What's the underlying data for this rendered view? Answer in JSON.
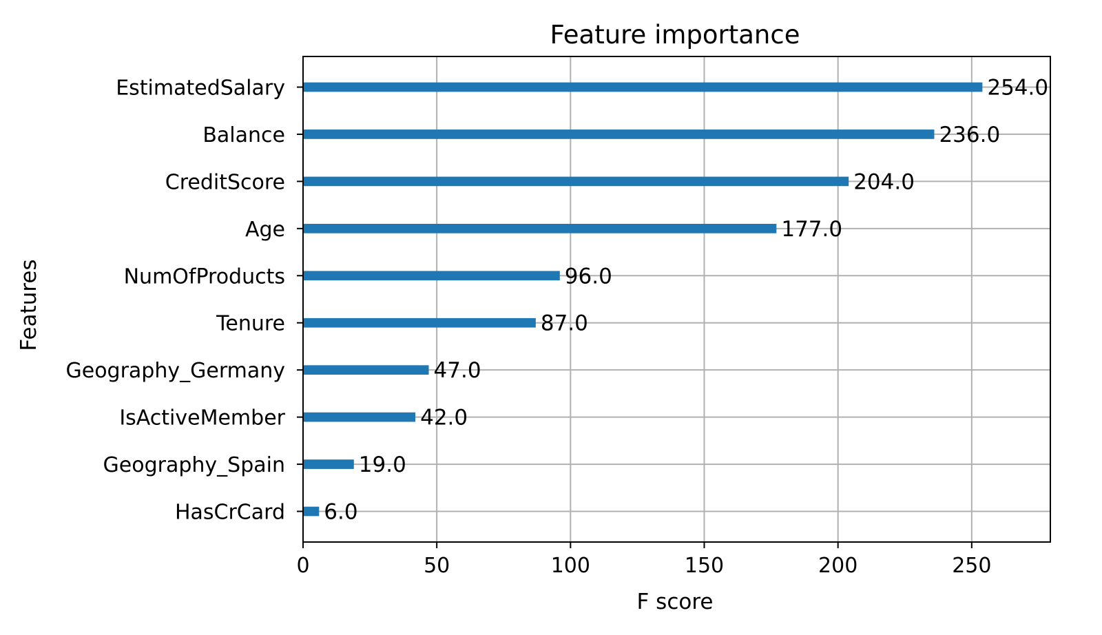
{
  "chart_data": {
    "type": "bar",
    "orientation": "horizontal",
    "title": "Feature importance",
    "xlabel": "F score",
    "ylabel": "Features",
    "categories": [
      "HasCrCard",
      "Geography_Spain",
      "IsActiveMember",
      "Geography_Germany",
      "Tenure",
      "NumOfProducts",
      "Age",
      "CreditScore",
      "Balance",
      "EstimatedSalary"
    ],
    "values": [
      6,
      19,
      42,
      47,
      87,
      96,
      177,
      204,
      236,
      254
    ],
    "data_labels": [
      "6.0",
      "19.0",
      "42.0",
      "47.0",
      "87.0",
      "96.0",
      "177.0",
      "204.0",
      "236.0",
      "254.0"
    ],
    "xlim": [
      0,
      279.4
    ],
    "xticks": [
      0,
      50,
      100,
      150,
      200,
      250
    ],
    "grid": true,
    "bar_color": "#1f77b4"
  }
}
